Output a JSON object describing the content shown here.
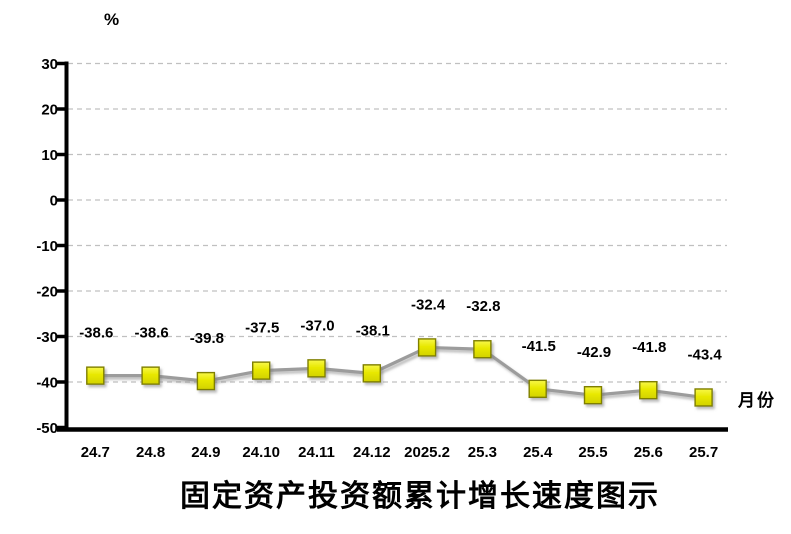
{
  "chart_data": {
    "type": "line",
    "title": "固定资产投资额累计增长速度图示",
    "y_unit_label": "%",
    "x_axis_label": "月份",
    "categories": [
      "24.7",
      "24.8",
      "24.9",
      "24.10",
      "24.11",
      "24.12",
      "2025.2",
      "25.3",
      "25.4",
      "25.5",
      "25.6",
      "25.7"
    ],
    "values": [
      -38.6,
      -38.6,
      -39.8,
      -37.5,
      -37.0,
      -38.1,
      -32.4,
      -32.8,
      -41.5,
      -42.9,
      -41.8,
      -43.4
    ],
    "data_labels": [
      "-38.6",
      "-38.6",
      "-39.8",
      "-37.5",
      "-37.0",
      "-38.1",
      "-32.4",
      "-32.8",
      "-41.5",
      "-42.9",
      "-41.8",
      "-43.4"
    ],
    "ylim": [
      -50,
      30
    ],
    "yticks": [
      30,
      20,
      10,
      0,
      -10,
      -20,
      -30,
      -40,
      -50
    ],
    "grid": "horizontal-dashed",
    "legend": "none",
    "colors": {
      "line": "#9c9c9c",
      "marker_fill": "#e8e800",
      "marker_fill_light": "#f8f84a",
      "marker_stroke": "#7f7f00",
      "grid": "#c0c0c0",
      "axis": "#000000",
      "text": "#000000"
    }
  }
}
